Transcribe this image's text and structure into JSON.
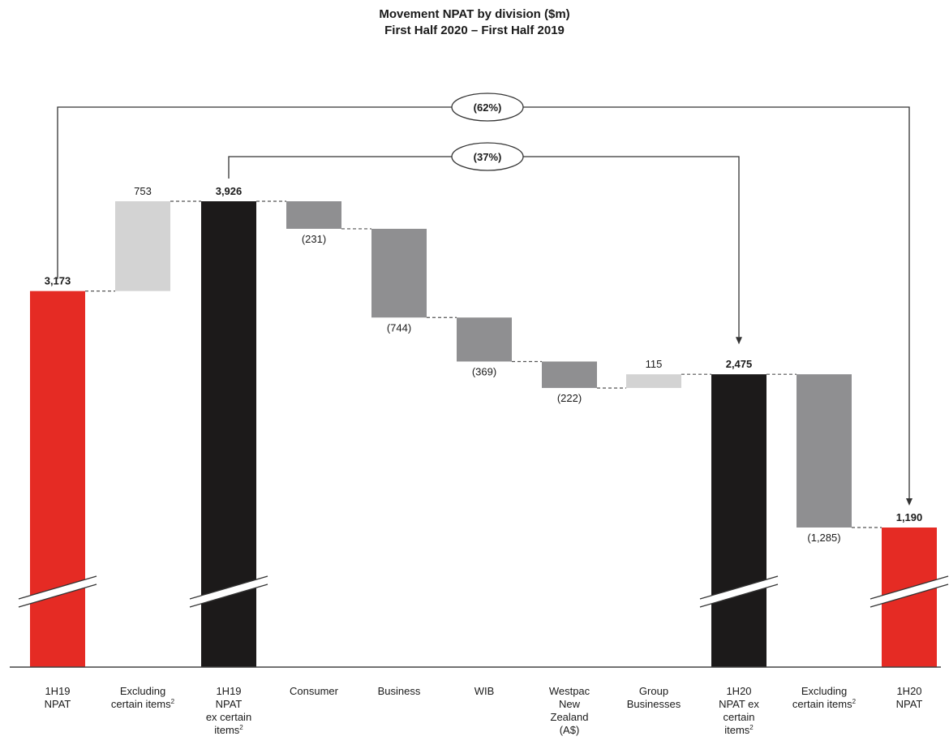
{
  "chart_data": {
    "type": "bar",
    "subtype": "waterfall",
    "title": "Movement NPAT by division ($m)",
    "subtitle": "First Half 2020 – First Half 2019",
    "axis_break": true,
    "categories": [
      [
        "1H19",
        "NPAT"
      ],
      [
        "Excluding",
        "certain items²"
      ],
      [
        "1H19",
        "NPAT",
        "ex certain",
        "items²"
      ],
      [
        "Consumer"
      ],
      [
        "Business"
      ],
      [
        "WIB"
      ],
      [
        "Westpac",
        "New",
        "Zealand",
        "(A$)"
      ],
      [
        "Group",
        "Businesses"
      ],
      [
        "1H20",
        "NPAT ex",
        "certain",
        "items²"
      ],
      [
        "Excluding",
        "certain items²"
      ],
      [
        "1H20",
        "NPAT"
      ]
    ],
    "values": [
      3173,
      753,
      3926,
      -231,
      -744,
      -369,
      -222,
      115,
      2475,
      -1285,
      1190
    ],
    "value_labels": [
      "3,173",
      "753",
      "3,926",
      "(231)",
      "(744)",
      "(369)",
      "(222)",
      "115",
      "2,475",
      "(1,285)",
      "1,190"
    ],
    "kinds": [
      "total",
      "delta",
      "total",
      "delta",
      "delta",
      "delta",
      "delta",
      "delta",
      "total",
      "delta",
      "total"
    ],
    "colors": {
      "red_total": "#e52b24",
      "black_total": "#1c1a1a",
      "increase": "#d3d3d3",
      "decrease": "#8f8f91"
    },
    "bar_colors": [
      "#e52b24",
      "#d3d3d3",
      "#1c1a1a",
      "#8f8f91",
      "#8f8f91",
      "#8f8f91",
      "#8f8f91",
      "#d3d3d3",
      "#1c1a1a",
      "#8f8f91",
      "#e52b24"
    ],
    "annotations": [
      {
        "text": "(62%)",
        "from": 0,
        "to": 10
      },
      {
        "text": "(37%)",
        "from": 2,
        "to": 8
      }
    ]
  }
}
